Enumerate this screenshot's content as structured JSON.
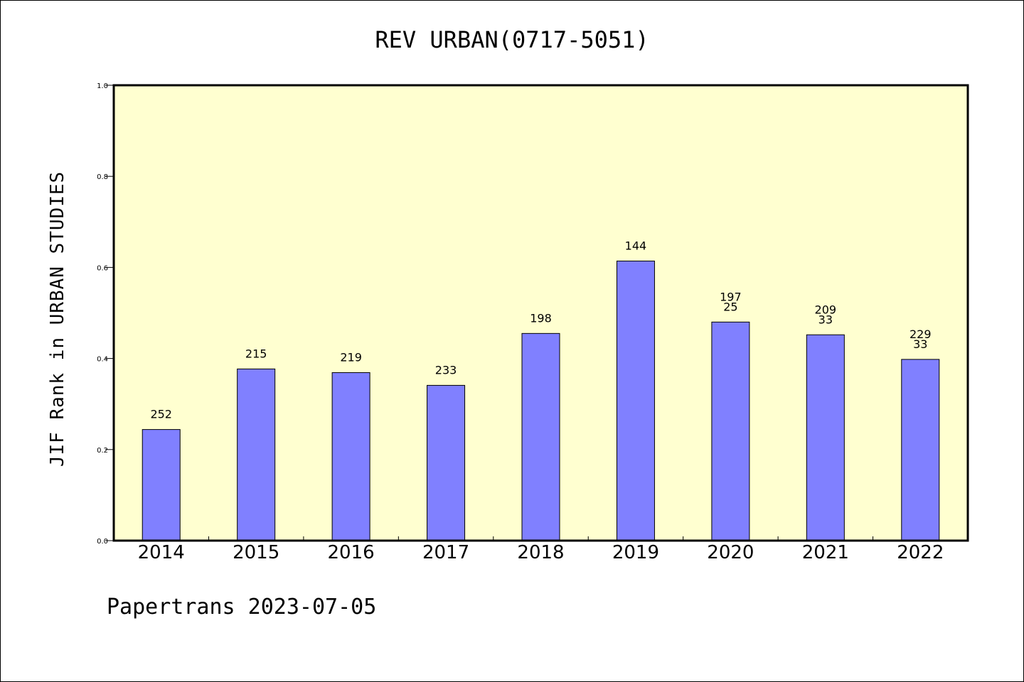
{
  "footer": "Papertrans 2023-07-05",
  "chart_data": {
    "type": "bar",
    "title": "REV URBAN(0717-5051)",
    "ylabel": "JIF Rank in URBAN STUDIES",
    "xlabel": "",
    "ylim": [
      0,
      1.0
    ],
    "yticks": [
      "0.0",
      "0.2",
      "0.4",
      "0.6",
      "0.8",
      "1.0"
    ],
    "categories": [
      "2014",
      "2015",
      "2016",
      "2017",
      "2018",
      "2019",
      "2020",
      "2021",
      "2022"
    ],
    "values": [
      0.244,
      0.377,
      0.369,
      0.341,
      0.455,
      0.614,
      0.48,
      0.452,
      0.398
    ],
    "data_labels": [
      [
        "252"
      ],
      [
        "215"
      ],
      [
        "219"
      ],
      [
        "233"
      ],
      [
        "198"
      ],
      [
        "144"
      ],
      [
        "197",
        "25"
      ],
      [
        "209",
        "33"
      ],
      [
        "229",
        "33"
      ]
    ],
    "plot_background": "#ffffd0",
    "bar_color": "#8080ff",
    "grid": false,
    "legend": "none"
  }
}
